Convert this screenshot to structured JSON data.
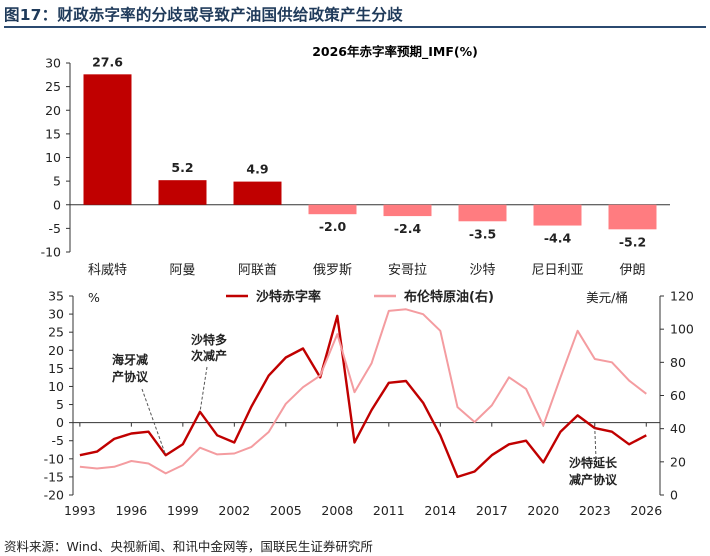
{
  "figure_title": "图17：财政赤字率的分歧或导致产油国供给政策产生分歧",
  "source": "资料来源：Wind、央视新闻、和讯中金网等，国联民生证券研究所",
  "colors": {
    "deficit": "#c00000",
    "deficit_negative": "#ff7c80",
    "brent": "#f49ca0",
    "title": "#1f3a5a"
  },
  "chart_data": [
    {
      "type": "bar",
      "title": "2026年赤字率预期_IMF(%)",
      "categories": [
        "科威特",
        "阿曼",
        "阿联酋",
        "俄罗斯",
        "安哥拉",
        "沙特",
        "尼日利亚",
        "伊朗"
      ],
      "values": [
        27.6,
        5.2,
        4.9,
        -2.0,
        -2.4,
        -3.5,
        -4.4,
        -5.2
      ],
      "value_labels": [
        "27.6",
        "5.2",
        "4.9",
        "-2.0",
        "-2.4",
        "-3.5",
        "-4.4",
        "-5.2"
      ],
      "ylim": [
        -10,
        30
      ],
      "yticks": [
        "-10",
        "-5",
        "0",
        "5",
        "10",
        "15",
        "20",
        "25",
        "30"
      ],
      "grid": false
    },
    {
      "type": "line",
      "x": [
        1993,
        1994,
        1995,
        1996,
        1997,
        1998,
        1999,
        2000,
        2001,
        2002,
        2003,
        2004,
        2005,
        2006,
        2007,
        2008,
        2009,
        2010,
        2011,
        2012,
        2013,
        2014,
        2015,
        2016,
        2017,
        2018,
        2019,
        2020,
        2021,
        2022,
        2023,
        2024,
        2025,
        2026
      ],
      "xticks": [
        "1993",
        "1996",
        "1999",
        "2002",
        "2005",
        "2008",
        "2011",
        "2014",
        "2017",
        "2020",
        "2023",
        "2026"
      ],
      "series": [
        {
          "name": "沙特赤字率",
          "axis": "left",
          "values": [
            -9,
            -8,
            -4.5,
            -3,
            -2.5,
            -9,
            -6,
            3,
            -3.5,
            -5.5,
            4.5,
            13,
            18,
            20.5,
            12.5,
            29.5,
            -5.5,
            3.5,
            11,
            11.5,
            5.5,
            -3.5,
            -15,
            -13.5,
            -9,
            -6,
            -5,
            -11,
            -2.5,
            2,
            -1.5,
            -2.5,
            -6,
            -3.5
          ]
        },
        {
          "name": "布伦特原油(右)",
          "axis": "right",
          "values": [
            17,
            16,
            17,
            20.5,
            19,
            13,
            18,
            28.5,
            24.5,
            25,
            29,
            38,
            55,
            65,
            72,
            97,
            62,
            79.5,
            111,
            112,
            109,
            99,
            53,
            44,
            54,
            71,
            64,
            42,
            71,
            99,
            82,
            80,
            69,
            61
          ]
        }
      ],
      "left_axis": {
        "unit": "%",
        "ylim": [
          -20,
          35
        ],
        "yticks": [
          "-20",
          "-15",
          "-10",
          "-5",
          "0",
          "5",
          "10",
          "15",
          "20",
          "25",
          "30",
          "35"
        ]
      },
      "right_axis": {
        "unit": "美元/桶",
        "ylim": [
          0,
          120
        ],
        "yticks": [
          "0",
          "20",
          "40",
          "60",
          "80",
          "100",
          "120"
        ]
      },
      "annotations": [
        {
          "text": [
            "海牙减",
            "产协议"
          ],
          "year": 1998
        },
        {
          "text": [
            "沙特多",
            "次减产"
          ],
          "year": 2000
        },
        {
          "text": [
            "沙特延长",
            "减产协议"
          ],
          "year": 2023
        }
      ],
      "legend": "top",
      "grid": false
    }
  ]
}
